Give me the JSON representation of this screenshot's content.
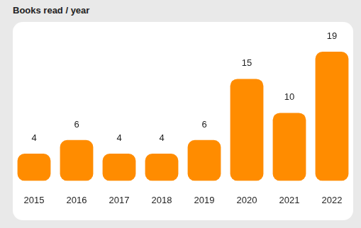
{
  "chart_data": {
    "type": "bar",
    "title": "Books read / year",
    "categories": [
      "2015",
      "2016",
      "2017",
      "2018",
      "2019",
      "2020",
      "2021",
      "2022"
    ],
    "values": [
      4,
      6,
      4,
      4,
      6,
      15,
      10,
      19
    ],
    "color": "#ff8c00",
    "ylim": [
      0,
      19
    ],
    "grid": false,
    "data_labels": true,
    "tick_labels": "x"
  }
}
